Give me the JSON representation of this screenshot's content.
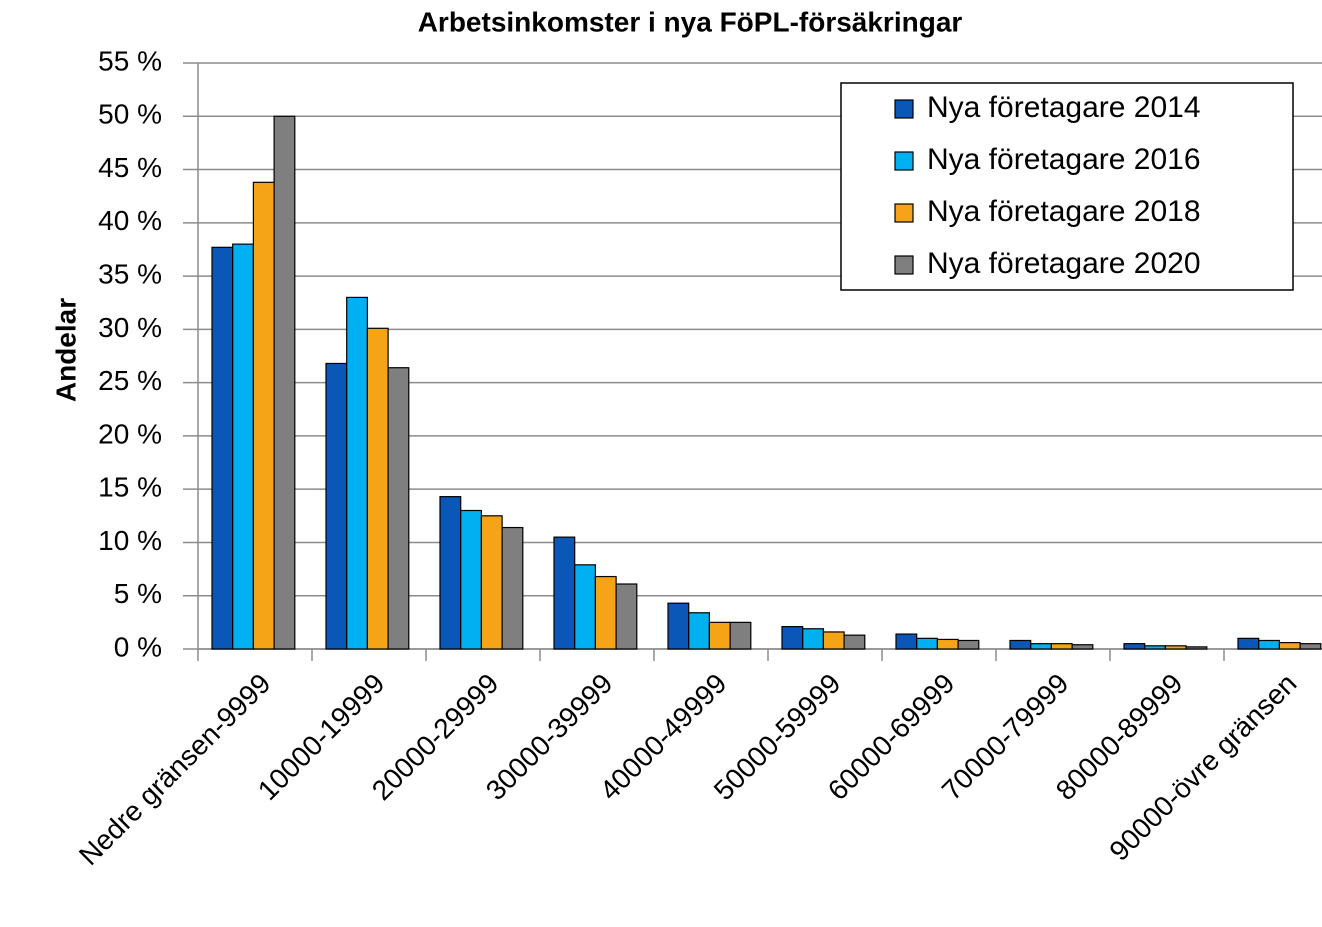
{
  "chart_data": {
    "type": "bar",
    "title": "Arbetsinkomster i nya FöPL-försäkringar",
    "y_label": "Andelar",
    "categories": [
      "Nedre gränsen-9999",
      "10000-19999",
      "20000-29999",
      "30000-39999",
      "40000-49999",
      "50000-59999",
      "60000-69999",
      "70000-79999",
      "80000-89999",
      "90000-övre gränsen"
    ],
    "series": [
      {
        "name": "Nya företagare 2014",
        "color": "#0b57b8",
        "values": [
          37.7,
          26.8,
          14.3,
          10.5,
          4.3,
          2.1,
          1.4,
          0.8,
          0.5,
          1.0
        ]
      },
      {
        "name": "Nya företagare 2016",
        "color": "#00b0f0",
        "values": [
          38.0,
          33.0,
          13.0,
          7.9,
          3.4,
          1.9,
          1.0,
          0.5,
          0.3,
          0.8
        ]
      },
      {
        "name": "Nya företagare 2018",
        "color": "#f5a317",
        "values": [
          43.8,
          30.1,
          12.5,
          6.8,
          2.5,
          1.6,
          0.9,
          0.5,
          0.3,
          0.6
        ]
      },
      {
        "name": "Nya företagare 2020",
        "color": "#7f7f7f",
        "values": [
          50.0,
          26.4,
          11.4,
          6.1,
          2.5,
          1.3,
          0.8,
          0.4,
          0.2,
          0.5
        ]
      }
    ],
    "ylim": [
      0,
      55
    ],
    "yticks": [
      {
        "value": 0,
        "label": "0 %"
      },
      {
        "value": 5,
        "label": "5 %"
      },
      {
        "value": 10,
        "label": "10 %"
      },
      {
        "value": 15,
        "label": "15 %"
      },
      {
        "value": 20,
        "label": "20 %"
      },
      {
        "value": 25,
        "label": "25 %"
      },
      {
        "value": 30,
        "label": "30 %"
      },
      {
        "value": 35,
        "label": "35 %"
      },
      {
        "value": 40,
        "label": "40 %"
      },
      {
        "value": 45,
        "label": "45 %"
      },
      {
        "value": 50,
        "label": "50 %"
      },
      {
        "value": 55,
        "label": "55 %"
      }
    ],
    "grid": true,
    "legend": "upper right"
  }
}
